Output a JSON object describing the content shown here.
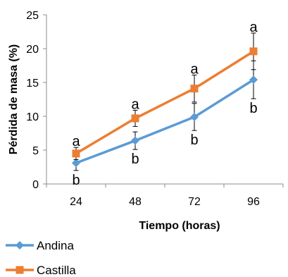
{
  "colors": {
    "andina": "#5B9BD5",
    "castilla": "#ED7D31",
    "axis": "#8C8C8C",
    "errorbar": "#000000"
  },
  "chart_data": {
    "type": "line",
    "title": "",
    "xlabel": "Tiempo (horas)",
    "ylabel": "Pérdida de masa (%)",
    "categories": [
      "24",
      "48",
      "72",
      "96"
    ],
    "ylim": [
      0,
      25
    ],
    "yticks": [
      0,
      5,
      10,
      15,
      20,
      25
    ],
    "grid": false,
    "legend_position": "bottom-left",
    "series": [
      {
        "name": "Andina",
        "color": "#5B9BD5",
        "marker": "diamond",
        "values": [
          3.1,
          6.4,
          9.9,
          15.4
        ],
        "error": [
          1.1,
          1.3,
          2.0,
          2.8
        ],
        "labels": [
          "b",
          "b",
          "b",
          "b"
        ],
        "label_position": "below"
      },
      {
        "name": "Castilla",
        "color": "#ED7D31",
        "marker": "square",
        "values": [
          4.5,
          9.7,
          14.1,
          19.6
        ],
        "error": [
          0.9,
          1.2,
          2.0,
          2.7
        ],
        "labels": [
          "a",
          "a",
          "a",
          "a"
        ],
        "label_position": "above"
      }
    ]
  }
}
